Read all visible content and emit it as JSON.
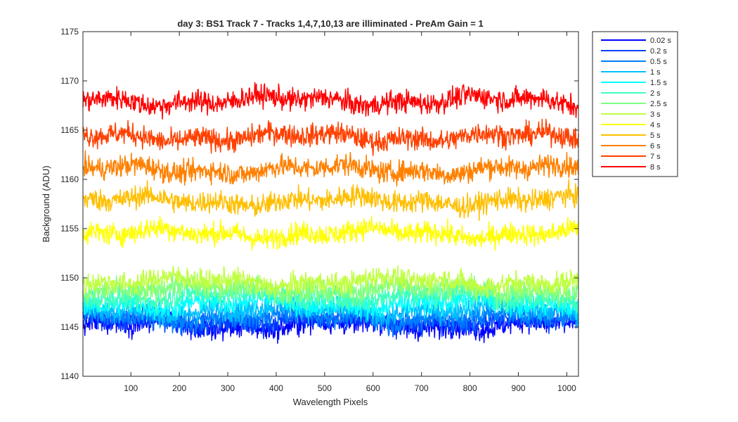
{
  "chart_data": {
    "type": "line",
    "title": "day 3: BS1  Track 7 - Tracks 1,4,7,10,13 are illiminated - PreAm Gain = 1",
    "xlabel": "Wavelength Pixels",
    "ylabel": "Background (ADU)",
    "xlim": [
      1,
      1024
    ],
    "ylim": [
      1140,
      1175
    ],
    "xticks": [
      100,
      200,
      300,
      400,
      500,
      600,
      700,
      800,
      900,
      1000
    ],
    "yticks": [
      1140,
      1145,
      1150,
      1155,
      1160,
      1165,
      1170,
      1175
    ],
    "grid": false,
    "legend_position": "outside-top-right",
    "series": [
      {
        "name": "0.02 s",
        "color": "#0000ff",
        "mean": 1145.2,
        "noise_amplitude": 1.0
      },
      {
        "name": "0.2 s",
        "color": "#0040ff",
        "mean": 1145.6,
        "noise_amplitude": 1.0
      },
      {
        "name": "0.5 s",
        "color": "#0080ff",
        "mean": 1146.0,
        "noise_amplitude": 1.0
      },
      {
        "name": "1 s",
        "color": "#00bfff",
        "mean": 1146.7,
        "noise_amplitude": 1.0
      },
      {
        "name": "1.5 s",
        "color": "#00ffff",
        "mean": 1147.4,
        "noise_amplitude": 1.0
      },
      {
        "name": "2 s",
        "color": "#40ffbf",
        "mean": 1148.1,
        "noise_amplitude": 1.0
      },
      {
        "name": "2.5 s",
        "color": "#80ff80",
        "mean": 1148.8,
        "noise_amplitude": 1.0
      },
      {
        "name": "3 s",
        "color": "#bfff40",
        "mean": 1149.6,
        "noise_amplitude": 1.0
      },
      {
        "name": "4 s",
        "color": "#ffff00",
        "mean": 1154.5,
        "noise_amplitude": 1.0
      },
      {
        "name": "5 s",
        "color": "#ffbf00",
        "mean": 1157.8,
        "noise_amplitude": 1.0
      },
      {
        "name": "6 s",
        "color": "#ff8000",
        "mean": 1161.0,
        "noise_amplitude": 1.0
      },
      {
        "name": "7 s",
        "color": "#ff4000",
        "mean": 1164.3,
        "noise_amplitude": 1.0
      },
      {
        "name": "8 s",
        "color": "#ff0000",
        "mean": 1168.0,
        "noise_amplitude": 1.0
      }
    ]
  }
}
